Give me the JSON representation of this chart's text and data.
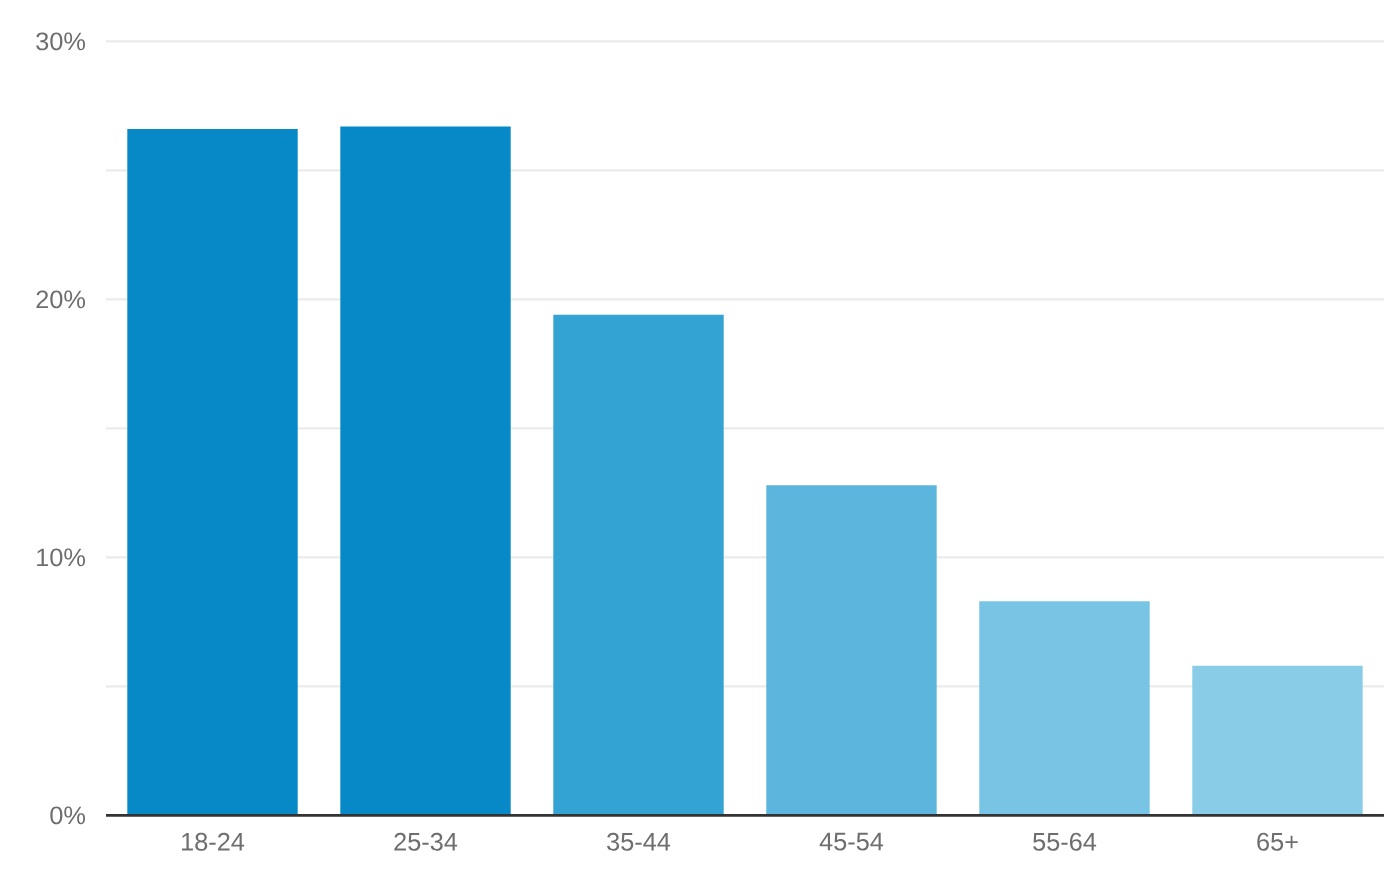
{
  "chart_data": {
    "type": "bar",
    "categories": [
      "18-24",
      "25-34",
      "35-44",
      "45-54",
      "55-64",
      "65+"
    ],
    "values": [
      26.6,
      26.7,
      19.4,
      12.8,
      8.3,
      5.8
    ],
    "colors": [
      "#0789c7",
      "#0789c7",
      "#33a3d4",
      "#5cb5dd",
      "#78c4e4",
      "#89cce8"
    ],
    "ylim": [
      0,
      30
    ],
    "yticks": [
      {
        "value": 0,
        "label": "0%"
      },
      {
        "value": 5,
        "label": null
      },
      {
        "value": 10,
        "label": "10%"
      },
      {
        "value": 15,
        "label": null
      },
      {
        "value": 20,
        "label": "20%"
      },
      {
        "value": 25,
        "label": null
      },
      {
        "value": 30,
        "label": "30%"
      }
    ],
    "grid": "y"
  }
}
